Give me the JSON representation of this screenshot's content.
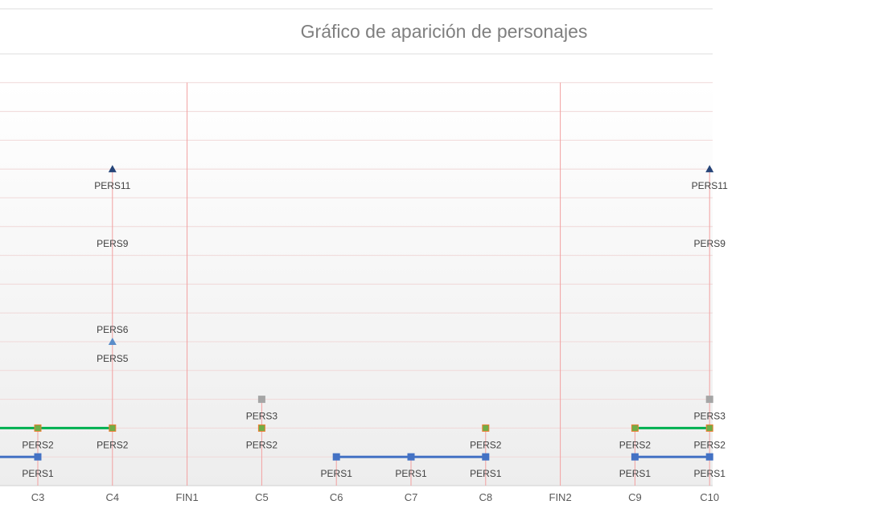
{
  "chart_data": {
    "type": "line",
    "title": "Gráfico de aparición de personajes",
    "categories": [
      "C3",
      "C4",
      "FIN1",
      "C5",
      "C6",
      "C7",
      "C8",
      "FIN2",
      "C9",
      "C10"
    ],
    "divider_categories": [
      "FIN1",
      "FIN2"
    ],
    "vlines_at": [
      "C3",
      "C4",
      "C5",
      "C6",
      "C7",
      "C8",
      "C9",
      "C10"
    ],
    "y_rows": 14,
    "series": [
      {
        "name": "PERS1",
        "marker": "square",
        "color": "#4472c4",
        "line": true,
        "points": [
          {
            "x": "C3",
            "y": 1
          },
          {
            "x": "C6",
            "y": 1
          },
          {
            "x": "C7",
            "y": 1
          },
          {
            "x": "C8",
            "y": 1
          },
          {
            "x": "C9",
            "y": 1
          },
          {
            "x": "C10",
            "y": 1
          }
        ],
        "segments": [
          [
            "C3",
            "C3"
          ],
          [
            "C6",
            "C8"
          ],
          [
            "C9",
            "C10"
          ]
        ]
      },
      {
        "name": "PERS2",
        "marker": "square",
        "color": "#00b050",
        "fill": "#70ad47",
        "border": "#ed7d31",
        "line": true,
        "points": [
          {
            "x": "C3",
            "y": 2
          },
          {
            "x": "C4",
            "y": 2
          },
          {
            "x": "C5",
            "y": 2
          },
          {
            "x": "C8",
            "y": 2
          },
          {
            "x": "C9",
            "y": 2
          },
          {
            "x": "C10",
            "y": 2
          }
        ],
        "segments": [
          [
            "C3",
            "C4"
          ],
          [
            "C9",
            "C10"
          ]
        ]
      },
      {
        "name": "PERS3",
        "marker": "square",
        "color": "#a5a5a5",
        "line": false,
        "points": [
          {
            "x": "C5",
            "y": 3
          },
          {
            "x": "C10",
            "y": 3
          }
        ]
      },
      {
        "name": "PERS5",
        "marker": "triangle",
        "color": "#5b8dc9",
        "line": false,
        "points": [
          {
            "x": "C4",
            "y": 5
          }
        ]
      },
      {
        "name": "PERS11",
        "marker": "triangle",
        "color": "#264478",
        "line": false,
        "points": [
          {
            "x": "C4",
            "y": 11
          },
          {
            "x": "C10",
            "y": 11
          }
        ]
      }
    ],
    "labels": [
      {
        "text": "PERS1",
        "x": "C3",
        "y": 1,
        "pos": "below"
      },
      {
        "text": "PERS1",
        "x": "C6",
        "y": 1,
        "pos": "below"
      },
      {
        "text": "PERS1",
        "x": "C7",
        "y": 1,
        "pos": "below"
      },
      {
        "text": "PERS1",
        "x": "C8",
        "y": 1,
        "pos": "below"
      },
      {
        "text": "PERS1",
        "x": "C9",
        "y": 1,
        "pos": "below"
      },
      {
        "text": "PERS1",
        "x": "C10",
        "y": 1,
        "pos": "below"
      },
      {
        "text": "PERS2",
        "x": "C3",
        "y": 2,
        "pos": "below"
      },
      {
        "text": "PERS2",
        "x": "C4",
        "y": 2,
        "pos": "below"
      },
      {
        "text": "PERS2",
        "x": "C5",
        "y": 2,
        "pos": "below"
      },
      {
        "text": "PERS2",
        "x": "C8",
        "y": 2,
        "pos": "below"
      },
      {
        "text": "PERS2",
        "x": "C9",
        "y": 2,
        "pos": "below"
      },
      {
        "text": "PERS2",
        "x": "C10",
        "y": 2,
        "pos": "below"
      },
      {
        "text": "PERS3",
        "x": "C5",
        "y": 3,
        "pos": "below"
      },
      {
        "text": "PERS3",
        "x": "C10",
        "y": 3,
        "pos": "below"
      },
      {
        "text": "PERS5",
        "x": "C4",
        "y": 5,
        "pos": "below"
      },
      {
        "text": "PERS6",
        "x": "C4",
        "y": 6,
        "pos": "below"
      },
      {
        "text": "PERS9",
        "x": "C4",
        "y": 9,
        "pos": "below"
      },
      {
        "text": "PERS9",
        "x": "C10",
        "y": 9,
        "pos": "below"
      },
      {
        "text": "PERS11",
        "x": "C4",
        "y": 11,
        "pos": "below"
      },
      {
        "text": "PERS11",
        "x": "C10",
        "y": 11,
        "pos": "below"
      }
    ],
    "grid": true,
    "legend": "none"
  }
}
